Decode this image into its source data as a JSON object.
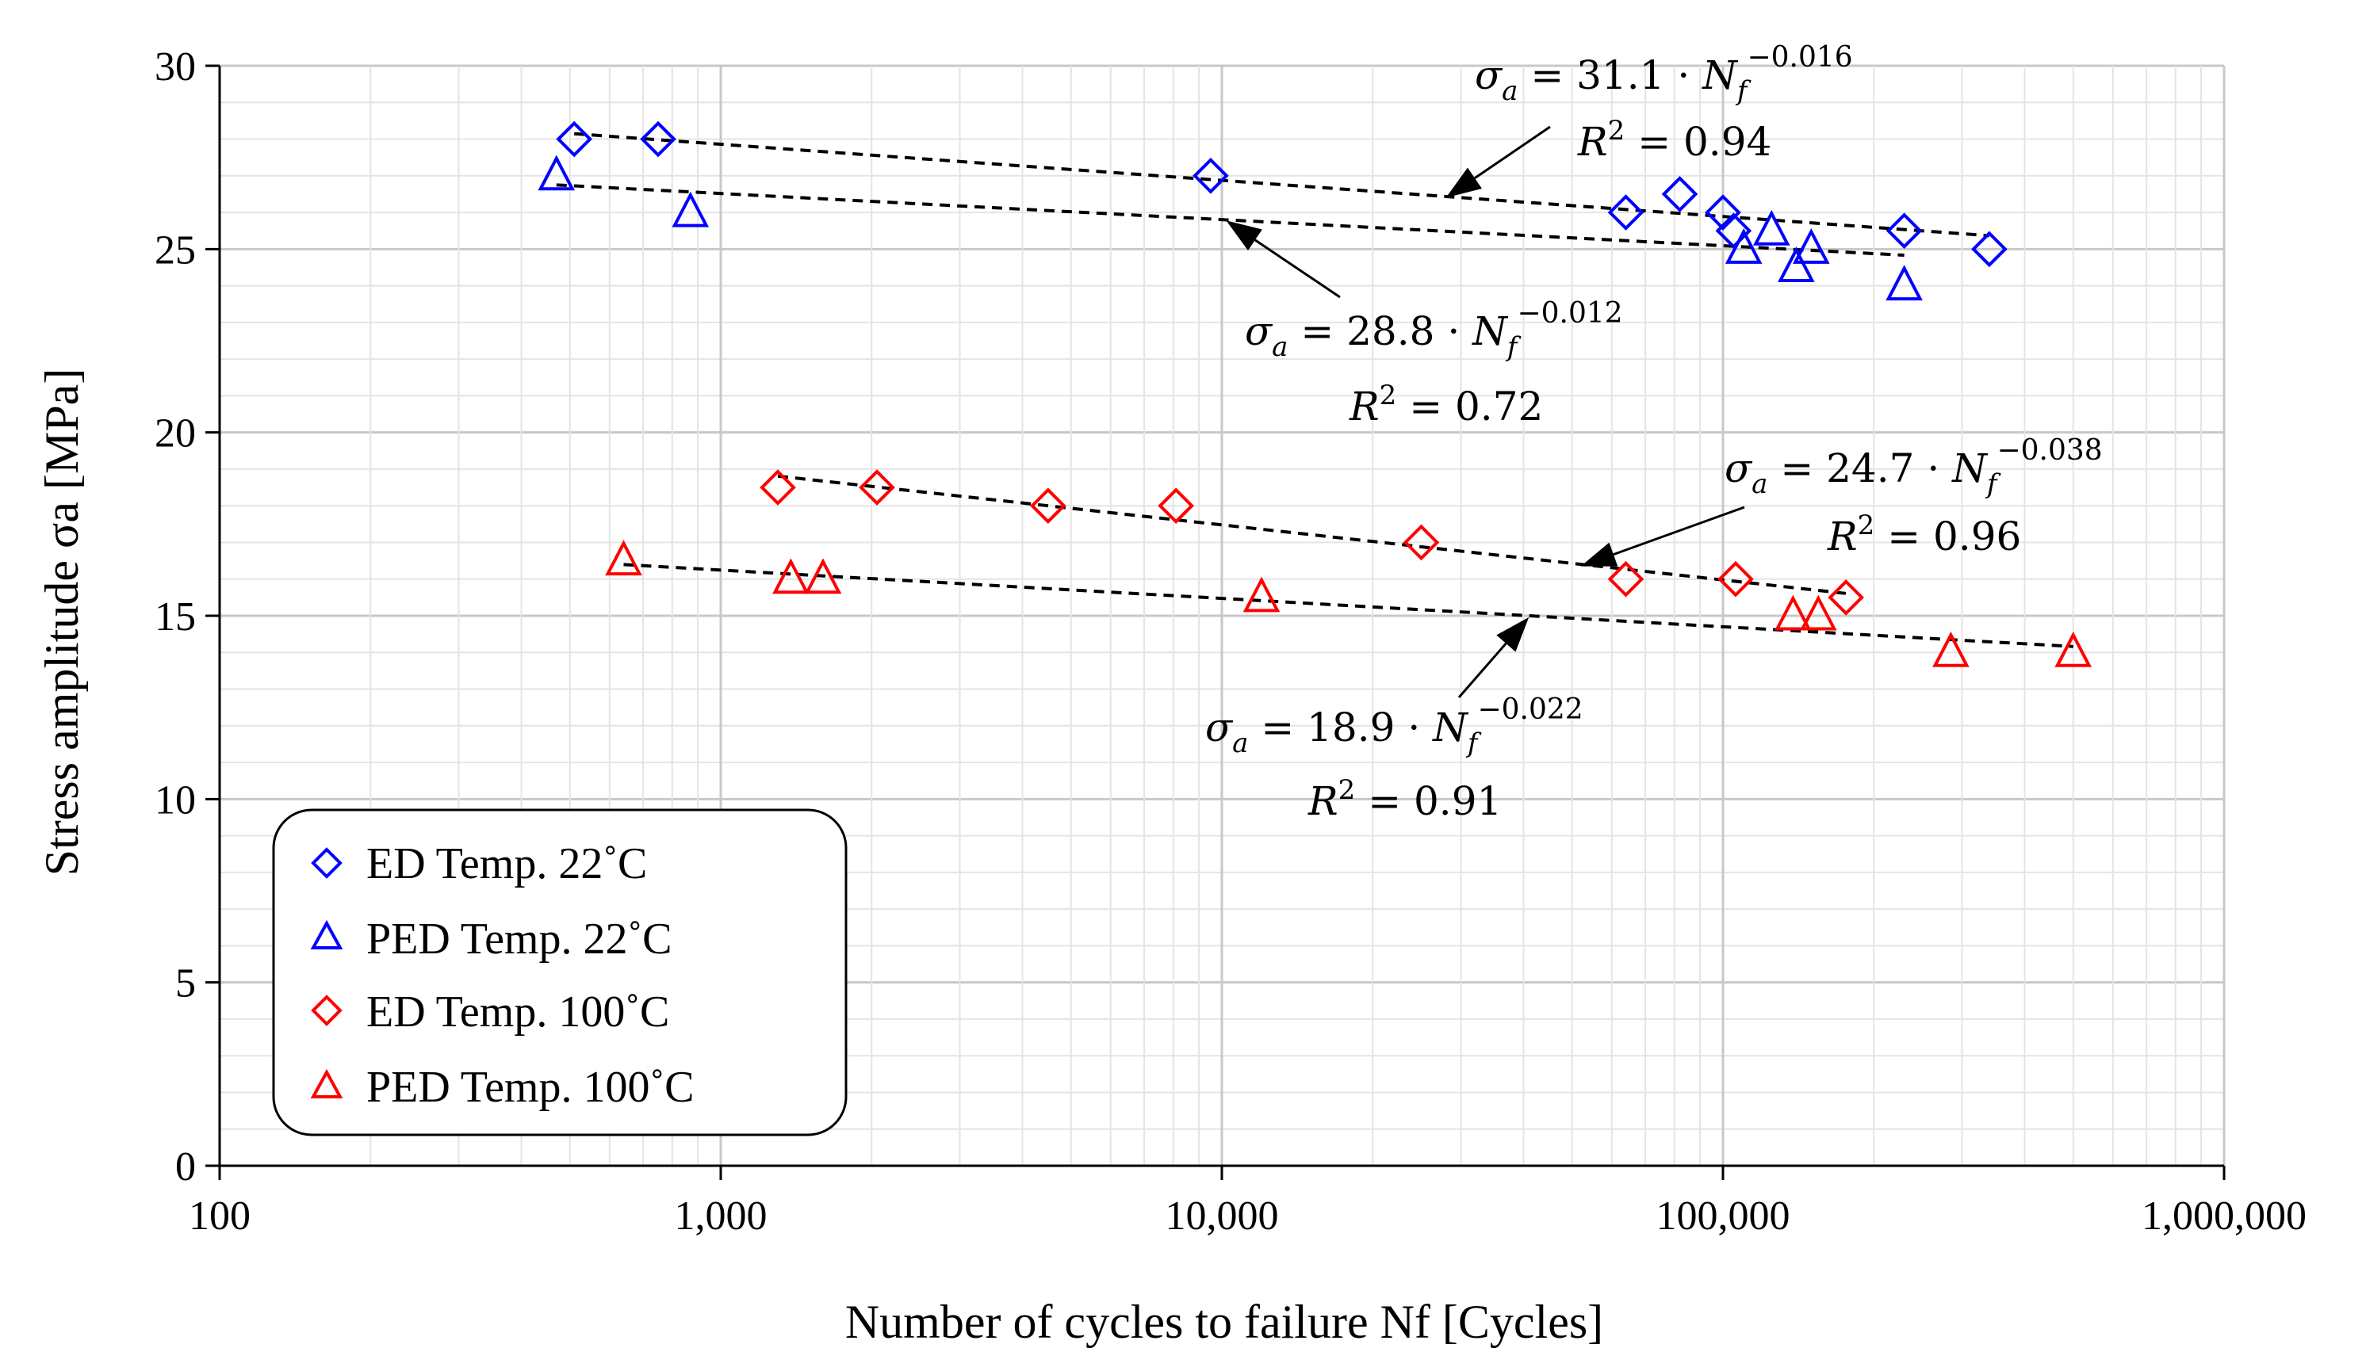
{
  "chart_data": {
    "type": "scatter",
    "x_scale": "log",
    "xlim": [
      100,
      1000000
    ],
    "ylim": [
      0,
      30
    ],
    "x_ticks": [
      100,
      1000,
      10000,
      100000,
      1000000
    ],
    "x_tick_labels": [
      "100",
      "1,000",
      "10,000",
      "100,000",
      "1,000,000"
    ],
    "y_ticks": [
      0,
      5,
      10,
      15,
      20,
      25,
      30
    ],
    "y_tick_labels": [
      "0",
      "5",
      "10",
      "15",
      "20",
      "25",
      "30"
    ],
    "xlabel": "Number of cycles to failure Nf  [Cycles]",
    "ylabel": "Stress amplitude σa [MPa]",
    "grid": true,
    "legend_position": "bottom-left",
    "series": [
      {
        "name": "ED Temp. 22˚C",
        "marker": "diamond",
        "color": "#0000ff",
        "points": [
          [
            510,
            28
          ],
          [
            750,
            28
          ],
          [
            9500,
            27
          ],
          [
            64000,
            26
          ],
          [
            82000,
            26.5
          ],
          [
            100000,
            26
          ],
          [
            105000,
            25.5
          ],
          [
            230000,
            25.5
          ],
          [
            340000,
            25
          ]
        ],
        "fit": {
          "coef": 31.1,
          "exp": -0.016,
          "r2": 0.94,
          "x_range": [
            510,
            340000
          ]
        }
      },
      {
        "name": "PED Temp. 22˚C",
        "marker": "triangle",
        "color": "#0000ff",
        "points": [
          [
            470,
            27
          ],
          [
            870,
            26
          ],
          [
            110000,
            25
          ],
          [
            125000,
            25.5
          ],
          [
            140000,
            24.5
          ],
          [
            150000,
            25
          ],
          [
            230000,
            24
          ]
        ],
        "fit": {
          "coef": 28.8,
          "exp": -0.012,
          "r2": 0.72,
          "x_range": [
            470,
            230000
          ]
        }
      },
      {
        "name": "ED Temp. 100˚C",
        "marker": "diamond",
        "color": "#ff0000",
        "points": [
          [
            1300,
            18.5
          ],
          [
            2050,
            18.5
          ],
          [
            4500,
            18
          ],
          [
            8100,
            18
          ],
          [
            25000,
            17
          ],
          [
            64000,
            16
          ],
          [
            106000,
            16
          ],
          [
            176000,
            15.5
          ]
        ],
        "fit": {
          "coef": 24.7,
          "exp": -0.038,
          "r2": 0.96,
          "x_range": [
            1300,
            176000
          ]
        }
      },
      {
        "name": "PED Temp. 100˚C",
        "marker": "triangle",
        "color": "#ff0000",
        "points": [
          [
            640,
            16.5
          ],
          [
            1380,
            16
          ],
          [
            1600,
            16
          ],
          [
            12000,
            15.5
          ],
          [
            138000,
            15
          ],
          [
            155000,
            15
          ],
          [
            285000,
            14
          ],
          [
            500000,
            14
          ]
        ],
        "fit": {
          "coef": 18.9,
          "exp": -0.022,
          "r2": 0.91,
          "x_range": [
            640,
            500000
          ]
        }
      }
    ],
    "annotations": [
      {
        "text": "σa = 31.1 · Nf^−0.016",
        "base": "31.1 · ",
        "exp": "−0.016",
        "r2_text": "R² = 0.94",
        "r2_value": "0.94"
      },
      {
        "text": "σa = 28.8 · Nf^−0.012",
        "base": "28.8 · ",
        "exp": "−0.012",
        "r2_text": "R² = 0.72",
        "r2_value": "0.72"
      },
      {
        "text": "σa = 24.7 · Nf^−0.038",
        "base": "24.7 · ",
        "exp": "−0.038",
        "r2_text": "R² = 0.96",
        "r2_value": "0.96"
      },
      {
        "text": "σa = 18.9 · Nf^−0.022",
        "base": "18.9 · ",
        "exp": "−0.022",
        "r2_text": "R² = 0.91",
        "r2_value": "0.91"
      }
    ]
  }
}
